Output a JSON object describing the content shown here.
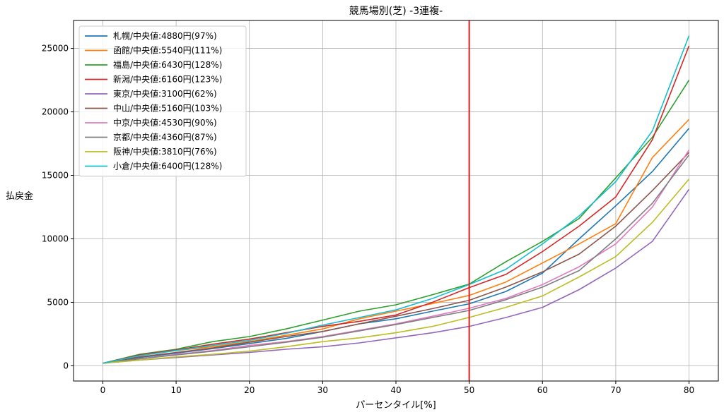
{
  "chart_data": {
    "type": "line",
    "title": "競馬場別(芝) -3連複-",
    "xlabel": "パーセンタイル[%]",
    "ylabel": "払戻金",
    "xlim": [
      -4,
      84
    ],
    "ylim": [
      -1200,
      27200
    ],
    "xticks": [
      0,
      10,
      20,
      30,
      40,
      50,
      60,
      70,
      80
    ],
    "yticks": [
      0,
      5000,
      10000,
      15000,
      20000,
      25000
    ],
    "grid": true,
    "legend_position": "top-left",
    "vline": {
      "x": 50,
      "color": "#e31a1c"
    },
    "x": [
      0,
      5,
      10,
      15,
      20,
      25,
      30,
      35,
      40,
      45,
      50,
      55,
      60,
      65,
      70,
      75,
      80
    ],
    "series": [
      {
        "name": "札幌/中央値:4880円(97%)",
        "color": "#1f77b4",
        "values": [
          200,
          650,
          1000,
          1350,
          1750,
          2150,
          2700,
          3300,
          3700,
          4300,
          4880,
          5850,
          7300,
          10000,
          12600,
          15300,
          18700
        ]
      },
      {
        "name": "函館/中央値:5540円(111%)",
        "color": "#ff7f0e",
        "values": [
          200,
          800,
          1200,
          1500,
          1900,
          2400,
          2900,
          3700,
          4300,
          4900,
          5540,
          6600,
          8100,
          9600,
          11200,
          16400,
          19400
        ]
      },
      {
        "name": "福島/中央値:6430円(128%)",
        "color": "#2ca02c",
        "values": [
          200,
          900,
          1300,
          1900,
          2300,
          2900,
          3600,
          4300,
          4800,
          5600,
          6430,
          8200,
          9800,
          11600,
          14800,
          18000,
          22500
        ]
      },
      {
        "name": "新潟/中央値:6160円(123%)",
        "color": "#d62728",
        "values": [
          200,
          850,
          1250,
          1700,
          2100,
          2600,
          3100,
          3500,
          4000,
          5000,
          6160,
          7200,
          9000,
          11000,
          13300,
          17800,
          25200
        ]
      },
      {
        "name": "東京/中央値:3100円(62%)",
        "color": "#9467bd",
        "values": [
          200,
          450,
          650,
          850,
          1050,
          1300,
          1500,
          1800,
          2200,
          2600,
          3100,
          3800,
          4600,
          6000,
          7700,
          9800,
          13900
        ]
      },
      {
        "name": "中山/中央値:5160円(103%)",
        "color": "#8c564b",
        "values": [
          200,
          700,
          1050,
          1400,
          1850,
          2300,
          2700,
          3300,
          3900,
          4500,
          5160,
          6200,
          7400,
          8800,
          11000,
          13800,
          16800
        ]
      },
      {
        "name": "中京/中央値:4530円(90%)",
        "color": "#e377c2",
        "values": [
          200,
          550,
          900,
          1200,
          1600,
          1900,
          2300,
          2800,
          3300,
          3900,
          4530,
          5300,
          6400,
          7800,
          9600,
          12500,
          17000
        ]
      },
      {
        "name": "京都/中央値:4360円(87%)",
        "color": "#7f7f7f",
        "values": [
          200,
          550,
          850,
          1150,
          1500,
          1850,
          2250,
          2750,
          3250,
          3800,
          4360,
          5200,
          6200,
          7500,
          10000,
          12800,
          16600
        ]
      },
      {
        "name": "阪神/中央値:3810円(76%)",
        "color": "#bcbd22",
        "values": [
          200,
          450,
          700,
          900,
          1150,
          1500,
          1900,
          2200,
          2600,
          3100,
          3810,
          4600,
          5500,
          7000,
          8600,
          11300,
          14700
        ]
      },
      {
        "name": "小倉/中央値:6400円(128%)",
        "color": "#17becf",
        "values": [
          200,
          800,
          1200,
          1600,
          2000,
          2550,
          3200,
          3800,
          4400,
          5300,
          6400,
          7600,
          9600,
          11800,
          14500,
          18500,
          26000
        ]
      }
    ]
  }
}
